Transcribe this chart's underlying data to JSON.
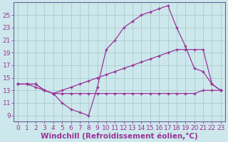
{
  "background_color": "#cde8ec",
  "grid_color": "#aacccc",
  "line_color": "#993399",
  "marker": "+",
  "xlabel": "Windchill (Refroidissement éolien,°C)",
  "ylabel_ticks": [
    9,
    11,
    13,
    15,
    17,
    19,
    21,
    23,
    25
  ],
  "xlabel_ticks": [
    0,
    1,
    2,
    3,
    4,
    5,
    6,
    7,
    8,
    9,
    10,
    11,
    12,
    13,
    14,
    15,
    16,
    17,
    18,
    19,
    20,
    21,
    22,
    23
  ],
  "xlim": [
    -0.5,
    23.5
  ],
  "ylim": [
    8.0,
    27.0
  ],
  "series1_x": [
    0,
    1,
    2,
    3,
    4,
    5,
    6,
    7,
    8,
    9,
    10,
    11,
    12,
    13,
    14,
    15,
    16,
    17,
    18,
    19,
    20,
    21,
    22,
    23
  ],
  "series1_y": [
    14.0,
    14.0,
    14.0,
    13.0,
    12.5,
    11.0,
    10.0,
    9.5,
    9.0,
    13.5,
    19.5,
    21.0,
    23.0,
    24.0,
    25.0,
    25.5,
    26.0,
    26.5,
    23.0,
    20.0,
    16.5,
    16.0,
    14.0,
    13.0
  ],
  "series2_x": [
    0,
    1,
    2,
    3,
    4,
    5,
    6,
    7,
    8,
    9,
    10,
    11,
    12,
    13,
    14,
    15,
    16,
    17,
    18,
    19,
    20,
    21,
    22,
    23
  ],
  "series2_y": [
    14.0,
    14.0,
    13.5,
    13.0,
    12.5,
    12.5,
    12.5,
    12.5,
    12.5,
    12.5,
    12.5,
    12.5,
    12.5,
    12.5,
    12.5,
    12.5,
    12.5,
    12.5,
    12.5,
    12.5,
    12.5,
    13.0,
    13.0,
    13.0
  ],
  "series3_x": [
    0,
    1,
    2,
    3,
    4,
    5,
    6,
    7,
    8,
    9,
    10,
    11,
    12,
    13,
    14,
    15,
    16,
    17,
    18,
    19,
    20,
    21,
    22,
    23
  ],
  "series3_y": [
    14.0,
    14.0,
    14.0,
    13.0,
    12.5,
    13.0,
    13.5,
    14.0,
    14.5,
    15.0,
    15.5,
    16.0,
    16.5,
    17.0,
    17.5,
    18.0,
    18.5,
    19.0,
    19.5,
    19.5,
    19.5,
    19.5,
    14.0,
    13.0
  ],
  "tick_fontsize": 6.5,
  "label_fontsize": 7.5
}
